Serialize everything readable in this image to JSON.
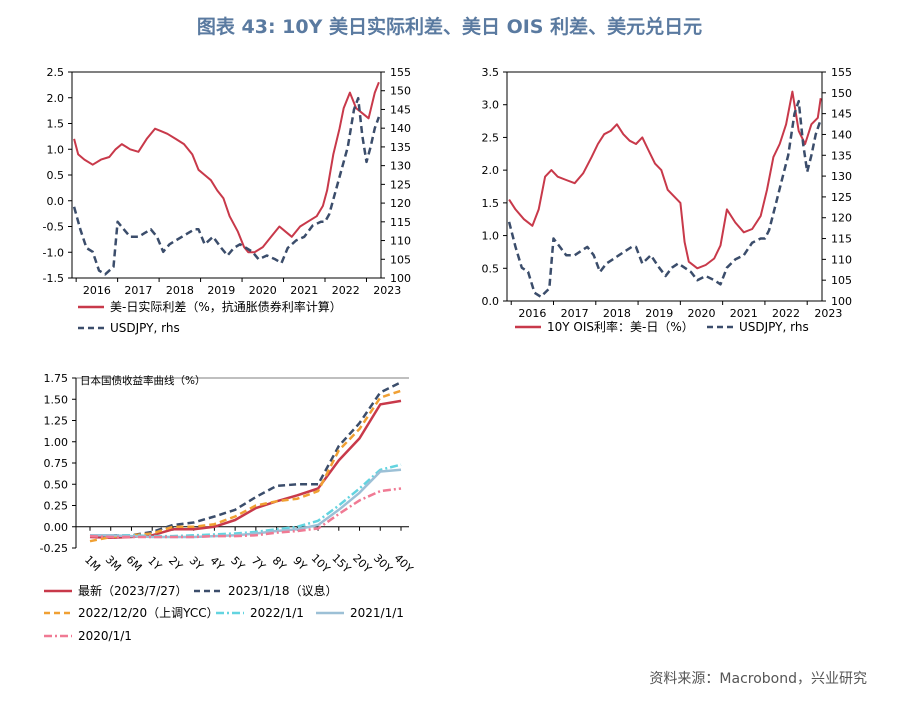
{
  "page": {
    "title": "图表 43: 10Y 美日实际利差、美日 OIS 利差、美元兑日元",
    "source": "资料来源：Macrobond，兴业研究"
  },
  "colors": {
    "red": "#c8394a",
    "navy": "#3b4d6b",
    "orange": "#f0a033",
    "cyan": "#63d4e0",
    "lightblue": "#9cc0d6",
    "pink": "#f07a94"
  },
  "chart_data": [
    {
      "type": "line",
      "id": "real",
      "x_labels": [
        "2016",
        "2017",
        "2018",
        "2019",
        "2020",
        "2021",
        "2022",
        "2023"
      ],
      "x_start": 2015.9,
      "x_end": 2023.35,
      "ylim_left": [
        -1.5,
        2.5
      ],
      "ylim_right": [
        100,
        155
      ],
      "left_ticks": [
        "2.5",
        "2.0",
        "1.5",
        "1.0",
        "0.5",
        "0.0",
        "-0.5",
        "-1.0",
        "-1.5"
      ],
      "right_ticks": [
        "155",
        "150",
        "145",
        "140",
        "135",
        "130",
        "125",
        "120",
        "115",
        "110",
        "105",
        "100"
      ],
      "legend": [
        "美-日实际利差（%，抗通胀债券利率计算）",
        "USDJPY, rhs"
      ],
      "series": [
        {
          "name": "美-日实际利差（%，抗通胀债券利率计算）",
          "axis": "left",
          "color_key": "red",
          "style": "solid",
          "x": [
            2015.95,
            2016.05,
            2016.2,
            2016.4,
            2016.6,
            2016.8,
            2016.95,
            2017.1,
            2017.3,
            2017.5,
            2017.7,
            2017.9,
            2018.05,
            2018.2,
            2018.4,
            2018.6,
            2018.8,
            2018.95,
            2019.1,
            2019.25,
            2019.4,
            2019.55,
            2019.7,
            2019.9,
            2020.05,
            2020.15,
            2020.3,
            2020.5,
            2020.7,
            2020.9,
            2021.05,
            2021.2,
            2021.4,
            2021.6,
            2021.8,
            2021.95,
            2022.05,
            2022.2,
            2022.35,
            2022.45,
            2022.6,
            2022.75,
            2022.9,
            2023.05,
            2023.2,
            2023.3
          ],
          "y": [
            1.2,
            0.9,
            0.8,
            0.7,
            0.8,
            0.85,
            1.0,
            1.1,
            1.0,
            0.95,
            1.2,
            1.4,
            1.35,
            1.3,
            1.2,
            1.1,
            0.9,
            0.6,
            0.5,
            0.4,
            0.2,
            0.05,
            -0.3,
            -0.6,
            -0.9,
            -1.0,
            -1.0,
            -0.9,
            -0.7,
            -0.5,
            -0.6,
            -0.7,
            -0.5,
            -0.4,
            -0.3,
            -0.1,
            0.2,
            0.9,
            1.4,
            1.8,
            2.1,
            1.8,
            1.7,
            1.6,
            2.1,
            2.3
          ]
        },
        {
          "name": "USDJPY, rhs",
          "axis": "right",
          "color_key": "navy",
          "style": "dashed",
          "x": [
            2015.95,
            2016.1,
            2016.25,
            2016.4,
            2016.55,
            2016.7,
            2016.9,
            2017.0,
            2017.15,
            2017.3,
            2017.5,
            2017.65,
            2017.8,
            2017.95,
            2018.1,
            2018.25,
            2018.4,
            2018.55,
            2018.7,
            2018.85,
            2018.95,
            2019.1,
            2019.3,
            2019.5,
            2019.65,
            2019.8,
            2019.95,
            2020.1,
            2020.25,
            2020.4,
            2020.6,
            2020.8,
            2020.95,
            2021.1,
            2021.3,
            2021.5,
            2021.7,
            2021.9,
            2022.0,
            2022.1,
            2022.25,
            2022.4,
            2022.55,
            2022.7,
            2022.8,
            2022.9,
            2023.0,
            2023.1,
            2023.2,
            2023.3
          ],
          "y": [
            119,
            113,
            108,
            107,
            102,
            101,
            103,
            115,
            113,
            111,
            111,
            112,
            113,
            111,
            107,
            109,
            110,
            111,
            112,
            113,
            113,
            109,
            111,
            108,
            106,
            108,
            109,
            108,
            107,
            105,
            106,
            105,
            104,
            108,
            110,
            111,
            114,
            115,
            115,
            117,
            123,
            129,
            135,
            145,
            148,
            138,
            131,
            135,
            140,
            143
          ]
        }
      ]
    },
    {
      "type": "line",
      "id": "ois",
      "x_labels": [
        "2016",
        "2017",
        "2018",
        "2019",
        "2020",
        "2021",
        "2022",
        "2023"
      ],
      "x_start": 2015.9,
      "x_end": 2023.35,
      "ylim_left": [
        0.0,
        3.5
      ],
      "ylim_right": [
        100,
        155
      ],
      "left_ticks": [
        "3.5",
        "3.0",
        "2.5",
        "2.0",
        "1.5",
        "1.0",
        "0.5",
        "0.0"
      ],
      "right_ticks": [
        "155",
        "150",
        "145",
        "140",
        "135",
        "130",
        "125",
        "120",
        "115",
        "110",
        "105",
        "100"
      ],
      "legend": [
        "10Y OIS利率：美-日（%）",
        "USDJPY, rhs"
      ],
      "series": [
        {
          "name": "10Y OIS利率：美-日（%）",
          "axis": "left",
          "color_key": "red",
          "style": "solid",
          "x": [
            2015.95,
            2016.1,
            2016.3,
            2016.5,
            2016.65,
            2016.8,
            2016.95,
            2017.1,
            2017.3,
            2017.5,
            2017.7,
            2017.9,
            2018.05,
            2018.2,
            2018.35,
            2018.5,
            2018.65,
            2018.8,
            2018.95,
            2019.1,
            2019.25,
            2019.4,
            2019.55,
            2019.7,
            2019.85,
            2020.0,
            2020.1,
            2020.2,
            2020.4,
            2020.6,
            2020.8,
            2020.95,
            2021.1,
            2021.3,
            2021.5,
            2021.7,
            2021.9,
            2022.05,
            2022.2,
            2022.35,
            2022.5,
            2022.65,
            2022.8,
            2022.95,
            2023.1,
            2023.25,
            2023.32
          ],
          "y": [
            1.55,
            1.4,
            1.25,
            1.15,
            1.4,
            1.9,
            2.0,
            1.9,
            1.85,
            1.8,
            1.95,
            2.2,
            2.4,
            2.55,
            2.6,
            2.7,
            2.55,
            2.45,
            2.4,
            2.5,
            2.3,
            2.1,
            2.0,
            1.7,
            1.6,
            1.5,
            0.9,
            0.6,
            0.5,
            0.55,
            0.65,
            0.85,
            1.4,
            1.2,
            1.05,
            1.1,
            1.3,
            1.7,
            2.2,
            2.4,
            2.7,
            3.2,
            2.6,
            2.4,
            2.7,
            2.8,
            3.1
          ]
        },
        {
          "name": "USDJPY, rhs",
          "axis": "right",
          "color_key": "navy",
          "style": "dashed",
          "x": [
            2015.95,
            2016.1,
            2016.25,
            2016.4,
            2016.55,
            2016.7,
            2016.9,
            2017.0,
            2017.15,
            2017.3,
            2017.5,
            2017.65,
            2017.8,
            2017.95,
            2018.1,
            2018.25,
            2018.4,
            2018.55,
            2018.7,
            2018.85,
            2018.95,
            2019.1,
            2019.3,
            2019.5,
            2019.65,
            2019.8,
            2019.95,
            2020.1,
            2020.25,
            2020.4,
            2020.6,
            2020.8,
            2020.95,
            2021.1,
            2021.3,
            2021.5,
            2021.7,
            2021.9,
            2022.0,
            2022.1,
            2022.25,
            2022.4,
            2022.55,
            2022.7,
            2022.8,
            2022.9,
            2023.0,
            2023.1,
            2023.2,
            2023.3
          ],
          "y": [
            119,
            113,
            108,
            107,
            102,
            101,
            103,
            115,
            113,
            111,
            111,
            112,
            113,
            111,
            107,
            109,
            110,
            111,
            112,
            113,
            113,
            109,
            111,
            108,
            106,
            108,
            109,
            108,
            107,
            105,
            106,
            105,
            104,
            108,
            110,
            111,
            114,
            115,
            115,
            117,
            123,
            129,
            135,
            145,
            148,
            138,
            131,
            135,
            140,
            143
          ]
        }
      ]
    },
    {
      "type": "line",
      "id": "yield-curve",
      "title": "日本国债收益率曲线（%）",
      "categories": [
        "1M",
        "3M",
        "6M",
        "1Y",
        "2Y",
        "3Y",
        "4Y",
        "5Y",
        "7Y",
        "8Y",
        "9Y",
        "10Y",
        "15Y",
        "20Y",
        "30Y",
        "40Y"
      ],
      "ylim": [
        -0.25,
        1.75
      ],
      "y_ticks": [
        "1.75",
        "1.50",
        "1.25",
        "1.00",
        "0.75",
        "0.50",
        "0.25",
        "0.00",
        "-0.25"
      ],
      "legend": [
        "最新（2023/7/27）",
        "2023/1/18（议息）",
        "2022/12/20（上调YCC）",
        "2022/1/1",
        "2021/1/1",
        "2020/1/1"
      ],
      "series": [
        {
          "name": "最新（2023/7/27）",
          "color_key": "red",
          "style": "solid",
          "values": [
            -0.12,
            -0.13,
            -0.12,
            -0.1,
            -0.03,
            -0.03,
            0.0,
            0.08,
            0.22,
            0.3,
            0.37,
            0.45,
            0.78,
            1.04,
            1.44,
            1.48
          ]
        },
        {
          "name": "2023/1/18（议息）",
          "color_key": "navy",
          "style": "dashed",
          "values": [
            -0.11,
            -0.1,
            -0.1,
            -0.06,
            0.02,
            0.05,
            0.12,
            0.2,
            0.35,
            0.48,
            0.5,
            0.5,
            0.95,
            1.22,
            1.58,
            1.7
          ]
        },
        {
          "name": "2022/12/20（上调YCC）",
          "color_key": "orange",
          "style": "dashed",
          "values": [
            -0.17,
            -0.12,
            -0.1,
            -0.08,
            0.0,
            0.0,
            0.03,
            0.12,
            0.25,
            0.3,
            0.33,
            0.42,
            0.9,
            1.15,
            1.52,
            1.6
          ]
        },
        {
          "name": "2022/1/1",
          "color_key": "cyan",
          "style": "dashdot",
          "values": [
            -0.1,
            -0.1,
            -0.1,
            -0.11,
            -0.11,
            -0.1,
            -0.09,
            -0.08,
            -0.06,
            -0.03,
            0.0,
            0.07,
            0.25,
            0.45,
            0.67,
            0.73
          ]
        },
        {
          "name": "2021/1/1",
          "color_key": "lightblue",
          "style": "solid",
          "values": [
            -0.1,
            -0.1,
            -0.11,
            -0.12,
            -0.12,
            -0.12,
            -0.11,
            -0.1,
            -0.08,
            -0.05,
            -0.03,
            0.02,
            0.2,
            0.4,
            0.65,
            0.67
          ]
        },
        {
          "name": "2020/1/1",
          "color_key": "pink",
          "style": "dashdot",
          "values": [
            -0.11,
            -0.12,
            -0.12,
            -0.12,
            -0.12,
            -0.12,
            -0.11,
            -0.11,
            -0.1,
            -0.07,
            -0.05,
            -0.02,
            0.15,
            0.31,
            0.42,
            0.45
          ]
        }
      ]
    }
  ]
}
